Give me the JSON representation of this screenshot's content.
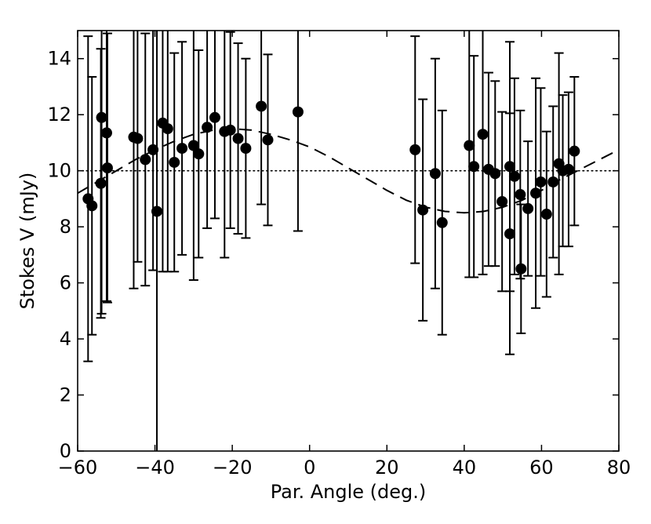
{
  "chart_data": {
    "type": "scatter",
    "title": "",
    "xlabel": "Par. Angle (deg.)",
    "ylabel": "Stokes V (mJy)",
    "xlim": [
      -60,
      80
    ],
    "ylim": [
      0,
      15
    ],
    "xticks": [
      -60,
      -40,
      -20,
      0,
      20,
      40,
      60,
      80
    ],
    "yticks": [
      0,
      2,
      4,
      6,
      8,
      10,
      12,
      14
    ],
    "xtick_labels": [
      "−60",
      "−40",
      "−20",
      "0",
      "20",
      "40",
      "60",
      "80"
    ],
    "ytick_labels": [
      "0",
      "2",
      "4",
      "6",
      "8",
      "10",
      "12",
      "14"
    ],
    "grid": false,
    "reference_line": {
      "y": 10,
      "style": "dotted"
    },
    "model_curve": {
      "style": "dashed",
      "x": [
        -60,
        -55,
        -50,
        -45,
        -40,
        -35,
        -30,
        -25,
        -20,
        -15,
        -10,
        -5,
        0,
        5,
        10,
        15,
        20,
        25,
        30,
        35,
        40,
        45,
        50,
        55,
        60,
        65,
        70,
        75,
        80
      ],
      "y": [
        9.2,
        9.6,
        10.0,
        10.4,
        10.75,
        11.05,
        11.3,
        11.45,
        11.5,
        11.45,
        11.3,
        11.1,
        10.85,
        10.5,
        10.1,
        9.7,
        9.3,
        8.95,
        8.7,
        8.55,
        8.5,
        8.55,
        8.7,
        8.95,
        9.3,
        9.7,
        10.05,
        10.4,
        10.75
      ]
    },
    "series": [
      {
        "points": [
          {
            "x": -57.3,
            "y": 9.0,
            "err": 5.8
          },
          {
            "x": -56.3,
            "y": 8.75,
            "err": 4.6
          },
          {
            "x": -54.0,
            "y": 9.55,
            "err": 4.8
          },
          {
            "x": -53.8,
            "y": 11.9,
            "err": 7.0
          },
          {
            "x": -52.5,
            "y": 11.35,
            "err": 6.0
          },
          {
            "x": -52.3,
            "y": 10.1,
            "err": 4.8
          },
          {
            "x": -45.5,
            "y": 11.2,
            "err": 5.4
          },
          {
            "x": -44.5,
            "y": 11.15,
            "err": 4.4
          },
          {
            "x": -42.5,
            "y": 10.4,
            "err": 4.5
          },
          {
            "x": -40.5,
            "y": 10.75,
            "err": 4.3
          },
          {
            "x": -39.5,
            "y": 8.55,
            "err": 9.0
          },
          {
            "x": -38.0,
            "y": 11.7,
            "err": 5.3
          },
          {
            "x": -36.7,
            "y": 11.5,
            "err": 5.1
          },
          {
            "x": -35.0,
            "y": 10.3,
            "err": 3.9
          },
          {
            "x": -33.0,
            "y": 10.8,
            "err": 3.8
          },
          {
            "x": -30.0,
            "y": 10.9,
            "err": 4.8
          },
          {
            "x": -28.7,
            "y": 10.6,
            "err": 3.7
          },
          {
            "x": -26.5,
            "y": 11.55,
            "err": 3.6
          },
          {
            "x": -24.5,
            "y": 11.9,
            "err": 3.6
          },
          {
            "x": -22.0,
            "y": 11.4,
            "err": 4.5
          },
          {
            "x": -20.5,
            "y": 11.45,
            "err": 3.5
          },
          {
            "x": -18.5,
            "y": 11.15,
            "err": 3.4
          },
          {
            "x": -16.5,
            "y": 10.8,
            "err": 3.2
          },
          {
            "x": -12.5,
            "y": 12.3,
            "err": 3.5
          },
          {
            "x": -10.8,
            "y": 11.1,
            "err": 3.05
          },
          {
            "x": -3.0,
            "y": 12.1,
            "err": 4.25
          },
          {
            "x": 27.3,
            "y": 10.75,
            "err": 4.05
          },
          {
            "x": 29.3,
            "y": 8.6,
            "err": 3.95
          },
          {
            "x": 32.5,
            "y": 9.9,
            "err": 4.1
          },
          {
            "x": 34.3,
            "y": 8.15,
            "err": 4.0
          },
          {
            "x": 41.3,
            "y": 10.9,
            "err": 4.7
          },
          {
            "x": 42.5,
            "y": 10.15,
            "err": 3.95
          },
          {
            "x": 44.8,
            "y": 11.3,
            "err": 5.0
          },
          {
            "x": 46.3,
            "y": 10.05,
            "err": 3.45
          },
          {
            "x": 48.0,
            "y": 9.9,
            "err": 3.3
          },
          {
            "x": 49.8,
            "y": 8.9,
            "err": 3.2
          },
          {
            "x": 51.8,
            "y": 10.15,
            "err": 4.45
          },
          {
            "x": 51.8,
            "y": 7.75,
            "err": 4.3
          },
          {
            "x": 53.0,
            "y": 9.8,
            "err": 3.5
          },
          {
            "x": 54.5,
            "y": 9.15,
            "err": 3.0
          },
          {
            "x": 54.7,
            "y": 6.5,
            "err": 2.3
          },
          {
            "x": 56.5,
            "y": 8.65,
            "err": 2.4
          },
          {
            "x": 58.5,
            "y": 9.2,
            "err": 4.1
          },
          {
            "x": 59.8,
            "y": 9.6,
            "err": 3.35
          },
          {
            "x": 61.3,
            "y": 8.45,
            "err": 2.95
          },
          {
            "x": 63.0,
            "y": 9.6,
            "err": 2.7
          },
          {
            "x": 64.5,
            "y": 10.25,
            "err": 3.95
          },
          {
            "x": 65.5,
            "y": 10.0,
            "err": 2.7
          },
          {
            "x": 67.0,
            "y": 10.05,
            "err": 2.75
          },
          {
            "x": 68.5,
            "y": 10.7,
            "err": 2.65
          }
        ]
      }
    ]
  }
}
